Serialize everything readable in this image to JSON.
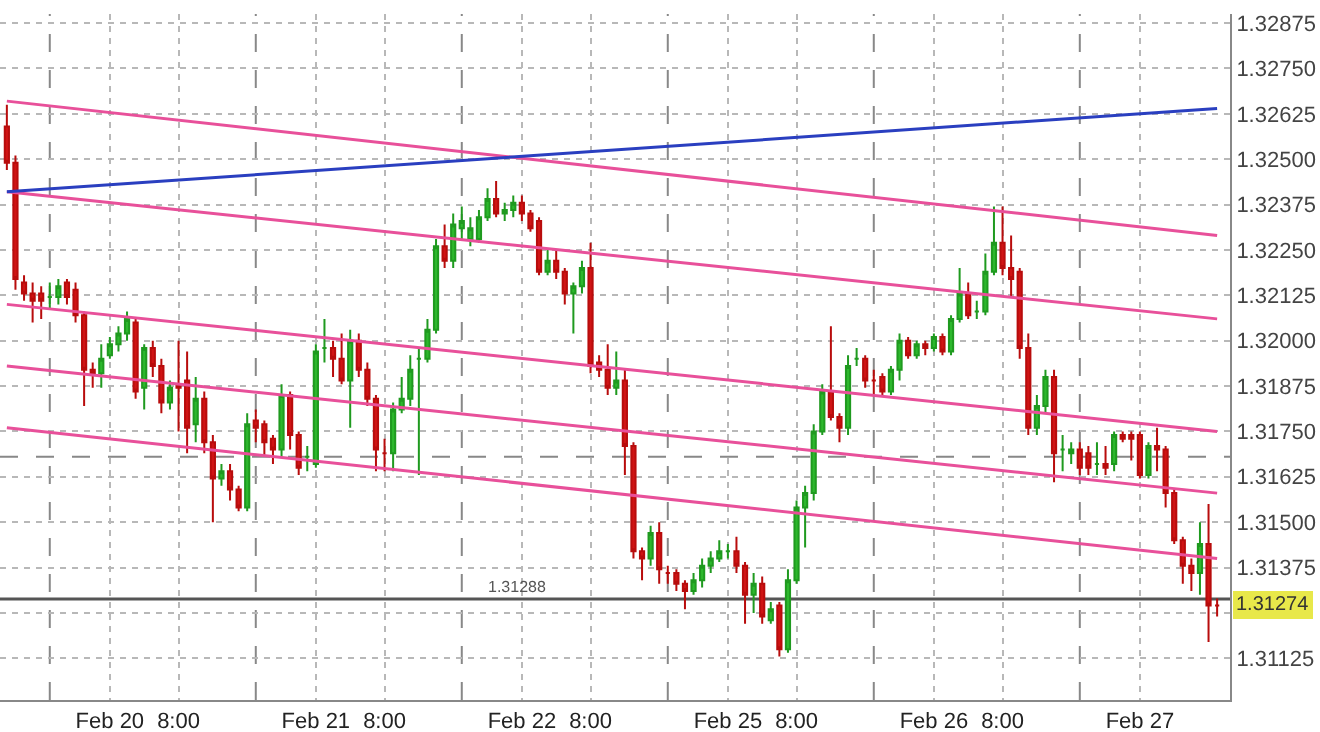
{
  "chart_data": {
    "type": "candlestick",
    "categories": [
      null,
      null,
      null,
      null,
      null,
      null,
      null,
      null,
      null,
      null,
      null,
      null,
      "Feb 20",
      null,
      null,
      null,
      null,
      null,
      null,
      null,
      "8:00",
      null,
      null,
      null,
      null,
      null,
      null,
      null,
      null,
      null,
      null,
      null,
      null,
      null,
      null,
      null,
      "Feb 21",
      null,
      null,
      null,
      null,
      null,
      null,
      null,
      "8:00",
      null,
      null,
      null,
      null,
      null,
      null,
      null,
      null,
      null,
      null,
      null,
      null,
      null,
      null,
      null,
      "Feb 22",
      null,
      null,
      null,
      null,
      null,
      null,
      null,
      "8:00",
      null,
      null,
      null,
      null,
      null,
      null,
      null,
      null,
      null,
      null,
      null,
      null,
      null,
      null,
      null,
      "Feb 25",
      null,
      null,
      null,
      null,
      null,
      null,
      null,
      "8:00",
      null,
      null,
      null,
      null,
      null,
      null,
      null,
      null,
      null,
      null,
      null,
      null,
      null,
      null,
      null,
      "Feb 26",
      null,
      null,
      null,
      null,
      null,
      null,
      null,
      "8:00",
      null,
      null,
      null,
      null,
      null,
      null,
      null,
      null,
      null,
      null,
      null,
      null,
      null,
      null,
      null,
      "Feb 27",
      null,
      null,
      null,
      null,
      null,
      null,
      null,
      null,
      null
    ],
    "ohlc": [
      [
        1.3259,
        1.3265,
        1.3247,
        1.3249
      ],
      [
        1.3249,
        1.3251,
        1.3214,
        1.3217
      ],
      [
        1.3216,
        1.3218,
        1.3211,
        1.3213
      ],
      [
        1.3213,
        1.3216,
        1.3205,
        1.3211
      ],
      [
        1.3213,
        1.3215,
        1.3206,
        1.3211
      ],
      [
        1.3212,
        1.3216,
        1.3209,
        1.3212
      ],
      [
        1.3212,
        1.3217,
        1.321,
        1.3215
      ],
      [
        1.3216,
        1.3217,
        1.321,
        1.3212
      ],
      [
        1.3214,
        1.3216,
        1.3205,
        1.3207
      ],
      [
        1.3207,
        1.3208,
        1.3182,
        1.3192
      ],
      [
        1.3192,
        1.3194,
        1.3187,
        1.3191
      ],
      [
        1.3191,
        1.3199,
        1.3187,
        1.3195
      ],
      [
        1.3196,
        1.3201,
        1.3195,
        1.3199
      ],
      [
        1.3199,
        1.3204,
        1.3197,
        1.3202
      ],
      [
        1.3202,
        1.3208,
        1.32,
        1.3206
      ],
      [
        1.3205,
        1.3206,
        1.3184,
        1.3186
      ],
      [
        1.3187,
        1.3199,
        1.3181,
        1.3198
      ],
      [
        1.3198,
        1.32,
        1.319,
        1.3193
      ],
      [
        1.3193,
        1.3195,
        1.318,
        1.3183
      ],
      [
        1.3183,
        1.3189,
        1.3181,
        1.3187
      ],
      [
        1.3188,
        1.32,
        1.3175,
        1.3187
      ],
      [
        1.3189,
        1.3197,
        1.3169,
        1.3176
      ],
      [
        1.3177,
        1.319,
        1.3172,
        1.3184
      ],
      [
        1.3184,
        1.3186,
        1.3169,
        1.3172
      ],
      [
        1.3172,
        1.3174,
        1.315,
        1.3162
      ],
      [
        1.3162,
        1.3166,
        1.316,
        1.3164
      ],
      [
        1.3164,
        1.3166,
        1.3156,
        1.3159
      ],
      [
        1.3159,
        1.316,
        1.3153,
        1.3154
      ],
      [
        1.3154,
        1.318,
        1.3153,
        1.3177
      ],
      [
        1.3178,
        1.3181,
        1.3172,
        1.3176
      ],
      [
        1.3177,
        1.3178,
        1.3168,
        1.3172
      ],
      [
        1.3173,
        1.3174,
        1.3166,
        1.317
      ],
      [
        1.317,
        1.3188,
        1.3168,
        1.3185
      ],
      [
        1.3185,
        1.3186,
        1.317,
        1.3174
      ],
      [
        1.3174,
        1.3175,
        1.3163,
        1.3165
      ],
      [
        1.3168,
        1.3171,
        1.3164,
        1.3168
      ],
      [
        1.3166,
        1.3199,
        1.3165,
        1.3197
      ],
      [
        1.3198,
        1.3206,
        1.3194,
        1.3198
      ],
      [
        1.3198,
        1.32,
        1.319,
        1.3195
      ],
      [
        1.3195,
        1.3202,
        1.3188,
        1.3189
      ],
      [
        1.3189,
        1.3203,
        1.3176,
        1.32
      ],
      [
        1.32,
        1.3202,
        1.319,
        1.3192
      ],
      [
        1.3192,
        1.3194,
        1.3182,
        1.3184
      ],
      [
        1.3184,
        1.3185,
        1.3164,
        1.317
      ],
      [
        1.3169,
        1.3173,
        1.3164,
        1.3169
      ],
      [
        1.3169,
        1.3183,
        1.3164,
        1.3181
      ],
      [
        1.3181,
        1.319,
        1.318,
        1.3184
      ],
      [
        1.3184,
        1.3196,
        1.3182,
        1.3192
      ],
      [
        1.3195,
        1.3198,
        1.3163,
        1.3195
      ],
      [
        1.3195,
        1.3206,
        1.3194,
        1.3203
      ],
      [
        1.3203,
        1.3228,
        1.3202,
        1.3226
      ],
      [
        1.3226,
        1.3232,
        1.322,
        1.3222
      ],
      [
        1.3222,
        1.3235,
        1.322,
        1.3232
      ],
      [
        1.3231,
        1.3237,
        1.3228,
        1.3233
      ],
      [
        1.3228,
        1.3234,
        1.3226,
        1.3231
      ],
      [
        1.3228,
        1.3236,
        1.3227,
        1.3234
      ],
      [
        1.3234,
        1.3242,
        1.3233,
        1.3239
      ],
      [
        1.3239,
        1.3244,
        1.3234,
        1.3235
      ],
      [
        1.3235,
        1.3238,
        1.3233,
        1.3236
      ],
      [
        1.3236,
        1.324,
        1.3234,
        1.3238
      ],
      [
        1.3238,
        1.324,
        1.3233,
        1.3235
      ],
      [
        1.3235,
        1.3236,
        1.323,
        1.3231
      ],
      [
        1.3233,
        1.3234,
        1.3218,
        1.3219
      ],
      [
        1.3219,
        1.3225,
        1.3218,
        1.3222
      ],
      [
        1.3222,
        1.3225,
        1.3217,
        1.3219
      ],
      [
        1.3219,
        1.322,
        1.321,
        1.3213
      ],
      [
        1.3213,
        1.3216,
        1.3202,
        1.3215
      ],
      [
        1.3215,
        1.3222,
        1.3213,
        1.322
      ],
      [
        1.322,
        1.3227,
        1.3191,
        1.3193
      ],
      [
        1.3194,
        1.3196,
        1.319,
        1.3192
      ],
      [
        1.3192,
        1.3199,
        1.3185,
        1.3187
      ],
      [
        1.3187,
        1.3197,
        1.3185,
        1.3189
      ],
      [
        1.3189,
        1.3192,
        1.3163,
        1.3171
      ],
      [
        1.3171,
        1.3172,
        1.314,
        1.3142
      ],
      [
        1.3142,
        1.3143,
        1.3134,
        1.314
      ],
      [
        1.314,
        1.3149,
        1.3138,
        1.3147
      ],
      [
        1.3147,
        1.315,
        1.3133,
        1.3137
      ],
      [
        1.3136,
        1.3138,
        1.3133,
        1.3136
      ],
      [
        1.3136,
        1.3137,
        1.3131,
        1.3133
      ],
      [
        1.3133,
        1.3134,
        1.3126,
        1.3131
      ],
      [
        1.3131,
        1.3136,
        1.313,
        1.3134
      ],
      [
        1.3134,
        1.314,
        1.3132,
        1.3138
      ],
      [
        1.3138,
        1.3142,
        1.3136,
        1.314
      ],
      [
        1.314,
        1.3145,
        1.3139,
        1.3142
      ],
      [
        1.3142,
        1.3144,
        1.314,
        1.3142
      ],
      [
        1.3142,
        1.3146,
        1.3136,
        1.3138
      ],
      [
        1.3138,
        1.3139,
        1.3122,
        1.313
      ],
      [
        1.313,
        1.3136,
        1.3125,
        1.3133
      ],
      [
        1.3133,
        1.3135,
        1.3122,
        1.3124
      ],
      [
        1.3123,
        1.3128,
        1.3122,
        1.3126
      ],
      [
        1.3127,
        1.3128,
        1.3113,
        1.3115
      ],
      [
        1.3115,
        1.3137,
        1.3114,
        1.3134
      ],
      [
        1.3134,
        1.3156,
        1.3133,
        1.3154
      ],
      [
        1.3154,
        1.316,
        1.3143,
        1.3158
      ],
      [
        1.3158,
        1.3177,
        1.3156,
        1.3175
      ],
      [
        1.3175,
        1.3188,
        1.3174,
        1.3186
      ],
      [
        1.3186,
        1.3204,
        1.3178,
        1.3179
      ],
      [
        1.3179,
        1.318,
        1.3172,
        1.3176
      ],
      [
        1.3176,
        1.3196,
        1.3174,
        1.3193
      ],
      [
        1.3195,
        1.3198,
        1.3193,
        1.3195
      ],
      [
        1.3195,
        1.3196,
        1.3187,
        1.3189
      ],
      [
        1.3189,
        1.3192,
        1.3185,
        1.3189
      ],
      [
        1.319,
        1.3191,
        1.3185,
        1.3186
      ],
      [
        1.3186,
        1.3193,
        1.3185,
        1.3192
      ],
      [
        1.3192,
        1.3202,
        1.3189,
        1.32
      ],
      [
        1.32,
        1.3201,
        1.3195,
        1.3196
      ],
      [
        1.3196,
        1.32,
        1.3195,
        1.3199
      ],
      [
        1.3199,
        1.32,
        1.3196,
        1.3198
      ],
      [
        1.3198,
        1.3202,
        1.3197,
        1.3201
      ],
      [
        1.3201,
        1.3202,
        1.3196,
        1.3197
      ],
      [
        1.3197,
        1.3207,
        1.3196,
        1.3206
      ],
      [
        1.3206,
        1.322,
        1.3205,
        1.3213
      ],
      [
        1.3213,
        1.3216,
        1.3206,
        1.3207
      ],
      [
        1.3208,
        1.3211,
        1.3206,
        1.3208
      ],
      [
        1.3208,
        1.3224,
        1.3207,
        1.3219
      ],
      [
        1.3219,
        1.3237,
        1.3218,
        1.3227
      ],
      [
        1.3227,
        1.3237,
        1.3218,
        1.322
      ],
      [
        1.322,
        1.3229,
        1.3212,
        1.3217
      ],
      [
        1.3219,
        1.322,
        1.3195,
        1.3198
      ],
      [
        1.3198,
        1.3202,
        1.3174,
        1.3176
      ],
      [
        1.3176,
        1.3185,
        1.3174,
        1.3182
      ],
      [
        1.3182,
        1.3192,
        1.318,
        1.319
      ],
      [
        1.319,
        1.3192,
        1.3161,
        1.3169
      ],
      [
        1.317,
        1.3174,
        1.3164,
        1.317
      ],
      [
        1.3169,
        1.3172,
        1.3166,
        1.317
      ],
      [
        1.317,
        1.3172,
        1.3163,
        1.3165
      ],
      [
        1.3169,
        1.3171,
        1.3163,
        1.3165
      ],
      [
        1.3166,
        1.3172,
        1.3163,
        1.3166
      ],
      [
        1.3166,
        1.3171,
        1.3163,
        1.3165
      ],
      [
        1.3166,
        1.3175,
        1.3164,
        1.3174
      ],
      [
        1.3174,
        1.3175,
        1.3172,
        1.3173
      ],
      [
        1.3174,
        1.3175,
        1.3167,
        1.3173
      ],
      [
        1.3174,
        1.3175,
        1.3162,
        1.3163
      ],
      [
        1.3163,
        1.3172,
        1.3162,
        1.3171
      ],
      [
        1.3171,
        1.3176,
        1.3164,
        1.317
      ],
      [
        1.317,
        1.3171,
        1.3154,
        1.3158
      ],
      [
        1.3158,
        1.3159,
        1.3144,
        1.3145
      ],
      [
        1.3145,
        1.3146,
        1.3133,
        1.3138
      ],
      [
        1.3138,
        1.314,
        1.3131,
        1.3136
      ],
      [
        1.3136,
        1.315,
        1.313,
        1.3144
      ],
      [
        1.3144,
        1.3155,
        1.3117,
        1.3127
      ],
      [
        1.3127,
        1.3129,
        1.3124,
        1.3127
      ]
    ],
    "series": [
      {
        "type": "line",
        "color": "#e8509a",
        "values": [
          1.3266,
          null,
          null,
          null,
          null,
          null,
          null,
          null,
          null,
          null,
          null,
          null,
          null,
          null,
          null,
          null,
          null,
          null,
          null,
          null,
          null,
          null,
          null,
          null,
          null,
          null,
          null,
          null,
          null,
          null,
          null,
          null,
          null,
          null,
          null,
          null,
          null,
          null,
          null,
          null,
          null,
          null,
          null,
          null,
          null,
          null,
          null,
          null,
          null,
          null,
          null,
          null,
          null,
          null,
          null,
          null,
          null,
          null,
          null,
          null,
          null,
          null,
          null,
          null,
          null,
          null,
          null,
          null,
          null,
          null,
          null,
          null,
          null,
          null,
          null,
          null,
          null,
          null,
          null,
          null,
          null,
          null,
          null,
          null,
          null,
          null,
          null,
          null,
          null,
          null,
          null,
          null,
          null,
          null,
          null,
          null,
          null,
          null,
          null,
          null,
          null,
          null,
          null,
          null,
          null,
          null,
          null,
          null,
          null,
          null,
          null,
          null,
          null,
          null,
          null,
          null,
          null,
          null,
          null,
          null,
          null,
          null,
          null,
          null,
          null,
          null,
          null,
          null,
          null,
          null,
          null,
          null,
          null,
          null,
          null,
          null,
          null,
          null,
          null,
          null,
          null,
          1.3229
        ]
      },
      {
        "type": "line",
        "color": "#e8509a",
        "values": [
          1.3241,
          null,
          null,
          null,
          null,
          null,
          null,
          null,
          null,
          null,
          null,
          null,
          null,
          null,
          null,
          null,
          null,
          null,
          null,
          null,
          null,
          null,
          null,
          null,
          null,
          null,
          null,
          null,
          null,
          null,
          null,
          null,
          null,
          null,
          null,
          null,
          null,
          null,
          null,
          null,
          null,
          null,
          null,
          null,
          null,
          null,
          null,
          null,
          null,
          null,
          null,
          null,
          null,
          null,
          null,
          null,
          null,
          null,
          null,
          null,
          null,
          null,
          null,
          null,
          null,
          null,
          null,
          null,
          null,
          null,
          null,
          null,
          null,
          null,
          null,
          null,
          null,
          null,
          null,
          null,
          null,
          null,
          null,
          null,
          null,
          null,
          null,
          null,
          null,
          null,
          null,
          null,
          null,
          null,
          null,
          null,
          null,
          null,
          null,
          null,
          null,
          null,
          null,
          null,
          null,
          null,
          null,
          null,
          null,
          null,
          null,
          null,
          null,
          null,
          null,
          null,
          null,
          null,
          null,
          null,
          null,
          null,
          null,
          null,
          null,
          null,
          null,
          null,
          null,
          null,
          null,
          null,
          null,
          null,
          null,
          null,
          null,
          null,
          null,
          null,
          null,
          1.3206
        ]
      },
      {
        "type": "line",
        "color": "#e8509a",
        "values": [
          1.321,
          null,
          null,
          null,
          null,
          null,
          null,
          null,
          null,
          null,
          null,
          null,
          null,
          null,
          null,
          null,
          null,
          null,
          null,
          null,
          null,
          null,
          null,
          null,
          null,
          null,
          null,
          null,
          null,
          null,
          null,
          null,
          null,
          null,
          null,
          null,
          null,
          null,
          null,
          null,
          null,
          null,
          null,
          null,
          null,
          null,
          null,
          null,
          null,
          null,
          null,
          null,
          null,
          null,
          null,
          null,
          null,
          null,
          null,
          null,
          null,
          null,
          null,
          null,
          null,
          null,
          null,
          null,
          null,
          null,
          null,
          null,
          null,
          null,
          null,
          null,
          null,
          null,
          null,
          null,
          null,
          null,
          null,
          null,
          null,
          null,
          null,
          null,
          null,
          null,
          null,
          null,
          null,
          null,
          null,
          null,
          null,
          null,
          null,
          null,
          null,
          null,
          null,
          null,
          null,
          null,
          null,
          null,
          null,
          null,
          null,
          null,
          null,
          null,
          null,
          null,
          null,
          null,
          null,
          null,
          null,
          null,
          null,
          null,
          null,
          null,
          null,
          null,
          null,
          null,
          null,
          null,
          null,
          null,
          null,
          null,
          null,
          null,
          null,
          null,
          null,
          1.3175
        ]
      },
      {
        "type": "line",
        "color": "#e8509a",
        "values": [
          1.3193,
          null,
          null,
          null,
          null,
          null,
          null,
          null,
          null,
          null,
          null,
          null,
          null,
          null,
          null,
          null,
          null,
          null,
          null,
          null,
          null,
          null,
          null,
          null,
          null,
          null,
          null,
          null,
          null,
          null,
          null,
          null,
          null,
          null,
          null,
          null,
          null,
          null,
          null,
          null,
          null,
          null,
          null,
          null,
          null,
          null,
          null,
          null,
          null,
          null,
          null,
          null,
          null,
          null,
          null,
          null,
          null,
          null,
          null,
          null,
          null,
          null,
          null,
          null,
          null,
          null,
          null,
          null,
          null,
          null,
          null,
          null,
          null,
          null,
          null,
          null,
          null,
          null,
          null,
          null,
          null,
          null,
          null,
          null,
          null,
          null,
          null,
          null,
          null,
          null,
          null,
          null,
          null,
          null,
          null,
          null,
          null,
          null,
          null,
          null,
          null,
          null,
          null,
          null,
          null,
          null,
          null,
          null,
          null,
          null,
          null,
          null,
          null,
          null,
          null,
          null,
          null,
          null,
          null,
          null,
          null,
          null,
          null,
          null,
          null,
          null,
          null,
          null,
          null,
          null,
          null,
          null,
          null,
          null,
          null,
          null,
          null,
          null,
          null,
          null,
          null,
          1.3158
        ]
      },
      {
        "type": "line",
        "color": "#e8509a",
        "values": [
          1.3176,
          null,
          null,
          null,
          null,
          null,
          null,
          null,
          null,
          null,
          null,
          null,
          null,
          null,
          null,
          null,
          null,
          null,
          null,
          null,
          null,
          null,
          null,
          null,
          null,
          null,
          null,
          null,
          null,
          null,
          null,
          null,
          null,
          null,
          null,
          null,
          null,
          null,
          null,
          null,
          null,
          null,
          null,
          null,
          null,
          null,
          null,
          null,
          null,
          null,
          null,
          null,
          null,
          null,
          null,
          null,
          null,
          null,
          null,
          null,
          null,
          null,
          null,
          null,
          null,
          null,
          null,
          null,
          null,
          null,
          null,
          null,
          null,
          null,
          null,
          null,
          null,
          null,
          null,
          null,
          null,
          null,
          null,
          null,
          null,
          null,
          null,
          null,
          null,
          null,
          null,
          null,
          null,
          null,
          null,
          null,
          null,
          null,
          null,
          null,
          null,
          null,
          null,
          null,
          null,
          null,
          null,
          null,
          null,
          null,
          null,
          null,
          null,
          null,
          null,
          null,
          null,
          null,
          null,
          null,
          null,
          null,
          null,
          null,
          null,
          null,
          null,
          null,
          null,
          null,
          null,
          null,
          null,
          null,
          null,
          null,
          null,
          null,
          null,
          null,
          null,
          1.314
        ]
      },
      {
        "type": "line",
        "color": "#2a3fc0",
        "values": [
          1.3241,
          null,
          null,
          null,
          null,
          null,
          null,
          null,
          null,
          null,
          null,
          null,
          null,
          null,
          null,
          null,
          null,
          null,
          null,
          null,
          null,
          null,
          null,
          null,
          null,
          null,
          null,
          null,
          null,
          null,
          null,
          null,
          null,
          null,
          null,
          null,
          null,
          null,
          null,
          null,
          null,
          null,
          null,
          null,
          null,
          null,
          null,
          null,
          null,
          null,
          null,
          null,
          null,
          null,
          null,
          null,
          null,
          null,
          null,
          null,
          null,
          null,
          null,
          null,
          null,
          null,
          null,
          null,
          null,
          null,
          null,
          null,
          null,
          null,
          null,
          null,
          null,
          null,
          null,
          null,
          null,
          null,
          null,
          null,
          null,
          null,
          null,
          null,
          null,
          null,
          null,
          null,
          null,
          null,
          null,
          null,
          null,
          null,
          null,
          null,
          null,
          null,
          null,
          null,
          null,
          null,
          null,
          null,
          null,
          null,
          null,
          null,
          null,
          null,
          null,
          null,
          null,
          null,
          null,
          null,
          null,
          null,
          null,
          null,
          null,
          null,
          null,
          null,
          null,
          null,
          null,
          null,
          null,
          null,
          null,
          null,
          null,
          null,
          null,
          null,
          null,
          1.3264
        ]
      }
    ],
    "ylim": [
      1.3101,
      1.329
    ],
    "yticks": [
      1.31125,
      {
        "value": 1.3125,
        "label": null
      },
      1.31375,
      {
        "value": 1.315,
        "label": "1.31500"
      },
      1.31625,
      {
        "value": 1.3175,
        "label": "1.31750"
      },
      1.31875,
      {
        "value": 1.32,
        "label": "1.32000"
      },
      1.32125,
      {
        "value": 1.3225,
        "label": "1.32250"
      },
      1.32375,
      {
        "value": 1.325,
        "label": "1.32500"
      },
      1.32625,
      {
        "value": 1.3275,
        "label": "1.32750"
      },
      1.32875
    ],
    "ref_lines": [
      {
        "axis": "y",
        "value": 1.31288,
        "label": "1.31288",
        "color": "#555555",
        "line_style": "solid"
      },
      {
        "axis": "y",
        "value": 1.3168,
        "color": "#888888",
        "line_style": "dashed"
      }
    ],
    "annotations": [
      {
        "text": "1.31274",
        "y": 1.31274
      }
    ],
    "grid": true
  }
}
